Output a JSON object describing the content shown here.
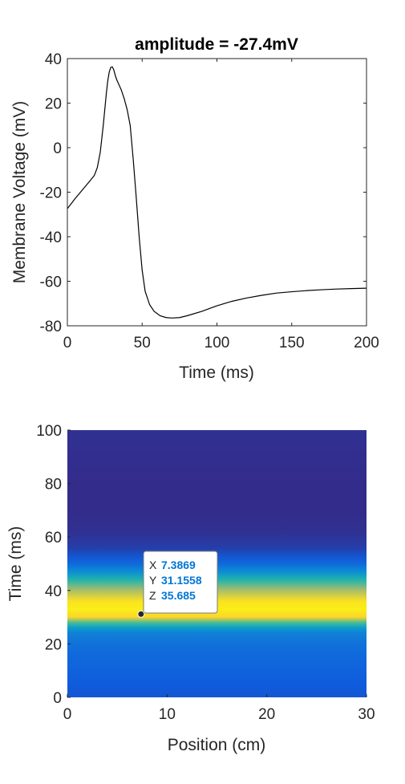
{
  "chart_data": [
    {
      "type": "line",
      "title": "amplitude = -27.4mV",
      "xlabel": "Time (ms)",
      "ylabel": "Membrane Voltage (mV)",
      "xlim": [
        0,
        200
      ],
      "ylim": [
        -80,
        40
      ],
      "xticks": [
        0,
        50,
        100,
        150,
        200
      ],
      "yticks": [
        -80,
        -60,
        -40,
        -20,
        0,
        20,
        40
      ],
      "grid": false,
      "series": [
        {
          "color": "#000000",
          "x": [
            0,
            5,
            10,
            15,
            18,
            20,
            22,
            24,
            26,
            27,
            28,
            29,
            30,
            31,
            32,
            33,
            34,
            35,
            36,
            38,
            40,
            42,
            44,
            46,
            48,
            50,
            52,
            55,
            58,
            62,
            66,
            70,
            75,
            80,
            90,
            100,
            110,
            120,
            130,
            140,
            150,
            160,
            170,
            180,
            190,
            200
          ],
          "y": [
            -27.4,
            -23,
            -19,
            -15,
            -12.5,
            -9,
            -2,
            10,
            24,
            30,
            34,
            36,
            36.3,
            35,
            32.5,
            30.5,
            29,
            27.5,
            26,
            22,
            17,
            10,
            -5,
            -22,
            -40,
            -55,
            -64.5,
            -70.5,
            -73.5,
            -75.5,
            -76.3,
            -76.5,
            -76.3,
            -75.5,
            -73.5,
            -71,
            -69,
            -67.5,
            -66.3,
            -65.3,
            -64.7,
            -64.2,
            -63.8,
            -63.5,
            -63.3,
            -63.1
          ]
        }
      ]
    },
    {
      "type": "heatmap",
      "xlabel": "Position (cm)",
      "ylabel": "Time (ms)",
      "xlim": [
        0,
        30
      ],
      "ylim": [
        0,
        100
      ],
      "xticks": [
        0,
        10,
        20,
        30
      ],
      "yticks": [
        0,
        20,
        40,
        60,
        80,
        100
      ],
      "colormap": "parula",
      "z_by_time": {
        "time": [
          0,
          5,
          10,
          15,
          20,
          24,
          26,
          28,
          30,
          33,
          36,
          40,
          44,
          47,
          50,
          53,
          56,
          62,
          70,
          80,
          90,
          100
        ],
        "z": [
          -57,
          -54,
          -50,
          -46,
          -40,
          -30,
          -12,
          12,
          34,
          36,
          35,
          24,
          5,
          -22,
          -45,
          -58,
          -68,
          -74,
          -76,
          -76,
          -75,
          -74
        ]
      },
      "zlim": [
        -77,
        37
      ],
      "datatip": {
        "x": 7.3869,
        "y": 31.1558,
        "x_label": "X",
        "x_value": "7.3869",
        "y_label": "Y",
        "y_value": "31.1558",
        "z_label": "Z",
        "z_value": "35.685"
      }
    }
  ]
}
